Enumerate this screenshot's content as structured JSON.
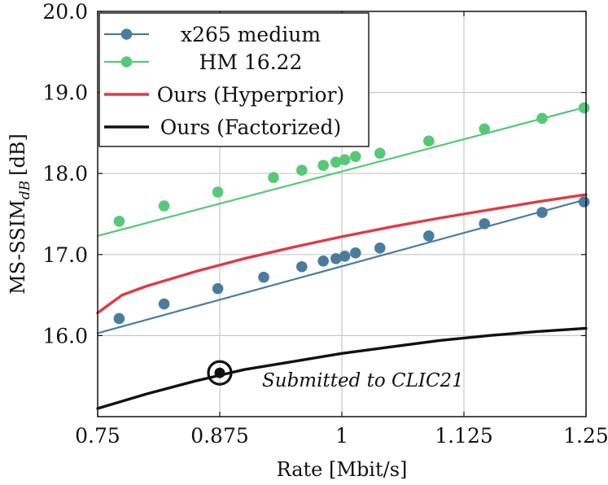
{
  "chart_data": {
    "type": "line",
    "xlabel": "Rate [Mbit/s]",
    "ylabel": {
      "main": "MS-SSIM",
      "sub": "dB",
      "unit": "[dB]"
    },
    "xlim": [
      0.75,
      1.25
    ],
    "ylim": [
      15.0,
      20.0
    ],
    "xticks": [
      0.75,
      0.875,
      1.0,
      1.125,
      1.25
    ],
    "xtick_labels": [
      "0.75",
      "0.875",
      "1",
      "1.125",
      "1.25"
    ],
    "yticks": [
      16.0,
      17.0,
      18.0,
      19.0,
      20.0
    ],
    "ytick_labels": [
      "16.0",
      "17.0",
      "18.0",
      "19.0",
      "20.0"
    ],
    "grid": true,
    "legend_position": "top-left",
    "series": [
      {
        "name": "x265 medium",
        "color": "#4a7d9d",
        "marker": "circle",
        "line_x": [
          0.75,
          1.25
        ],
        "x": [
          0.772,
          0.818,
          0.873,
          0.92,
          0.959,
          0.981,
          0.994,
          1.003,
          1.014,
          1.039,
          1.089,
          1.146,
          1.205,
          1.248
        ],
        "y": [
          16.21,
          16.39,
          16.58,
          16.72,
          16.85,
          16.92,
          16.95,
          16.98,
          17.02,
          17.08,
          17.23,
          17.38,
          17.52,
          17.65
        ],
        "line_y": [
          16.03,
          17.68
        ]
      },
      {
        "name": "HM 16.22",
        "color": "#57c878",
        "marker": "circle",
        "line_x": [
          0.75,
          1.25
        ],
        "x": [
          0.772,
          0.818,
          0.873,
          0.93,
          0.959,
          0.981,
          0.994,
          1.003,
          1.014,
          1.039,
          1.089,
          1.146,
          1.205,
          1.248
        ],
        "y": [
          17.41,
          17.6,
          17.77,
          17.95,
          18.04,
          18.1,
          18.14,
          18.17,
          18.21,
          18.25,
          18.4,
          18.55,
          18.68,
          18.81
        ],
        "line_y": [
          17.23,
          18.82
        ]
      },
      {
        "name": "Ours (Hyperprior)",
        "color": "#e03a45",
        "marker": "none",
        "x": [
          0.75,
          0.775,
          0.8,
          0.85,
          0.9,
          0.95,
          1.0,
          1.05,
          1.1,
          1.15,
          1.2,
          1.25
        ],
        "y": [
          16.28,
          16.5,
          16.61,
          16.79,
          16.95,
          17.09,
          17.22,
          17.34,
          17.45,
          17.55,
          17.65,
          17.74
        ]
      },
      {
        "name": "Ours (Factorized)",
        "color": "#111111",
        "marker": "none",
        "x": [
          0.75,
          0.8,
          0.85,
          0.9,
          0.95,
          1.0,
          1.05,
          1.1,
          1.15,
          1.2,
          1.25
        ],
        "y": [
          15.1,
          15.28,
          15.44,
          15.58,
          15.68,
          15.78,
          15.86,
          15.94,
          16.0,
          16.05,
          16.09
        ]
      }
    ],
    "annotations": [
      {
        "text": "Submitted to CLIC21",
        "x": 0.875,
        "y": 15.54,
        "marker": "ringed-dot"
      }
    ]
  }
}
